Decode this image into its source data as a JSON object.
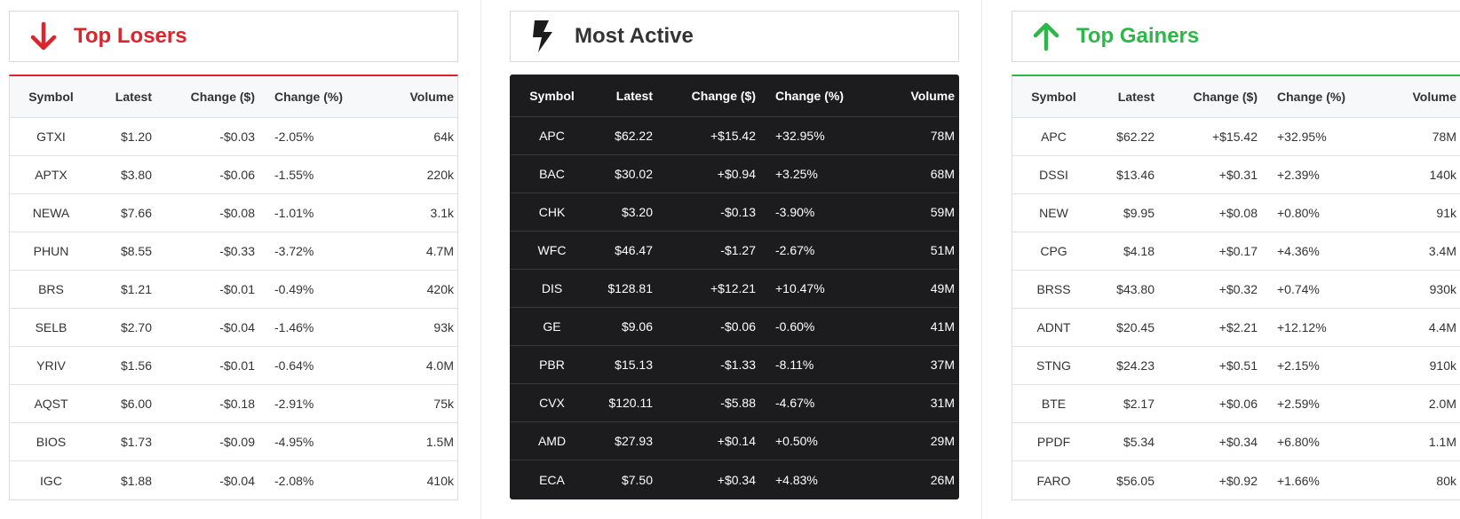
{
  "columns": [
    "Symbol",
    "Latest",
    "Change ($)",
    "Change (%)",
    "Volume"
  ],
  "colors": {
    "loss": "#d9262e",
    "gain": "#2bb74a",
    "dark": "#1c1c1e"
  },
  "panels": {
    "losers": {
      "title": "Top Losers",
      "icon": "arrow-down-icon",
      "rows": [
        [
          "GTXI",
          "$1.20",
          "-$0.03",
          "-2.05%",
          "64k"
        ],
        [
          "APTX",
          "$3.80",
          "-$0.06",
          "-1.55%",
          "220k"
        ],
        [
          "NEWA",
          "$7.66",
          "-$0.08",
          "-1.01%",
          "3.1k"
        ],
        [
          "PHUN",
          "$8.55",
          "-$0.33",
          "-3.72%",
          "4.7M"
        ],
        [
          "BRS",
          "$1.21",
          "-$0.01",
          "-0.49%",
          "420k"
        ],
        [
          "SELB",
          "$2.70",
          "-$0.04",
          "-1.46%",
          "93k"
        ],
        [
          "YRIV",
          "$1.56",
          "-$0.01",
          "-0.64%",
          "4.0M"
        ],
        [
          "AQST",
          "$6.00",
          "-$0.18",
          "-2.91%",
          "75k"
        ],
        [
          "BIOS",
          "$1.73",
          "-$0.09",
          "-4.95%",
          "1.5M"
        ],
        [
          "IGC",
          "$1.88",
          "-$0.04",
          "-2.08%",
          "410k"
        ]
      ]
    },
    "active": {
      "title": "Most Active",
      "icon": "lightning-bolt-icon",
      "rows": [
        [
          "APC",
          "$62.22",
          "+$15.42",
          "+32.95%",
          "78M"
        ],
        [
          "BAC",
          "$30.02",
          "+$0.94",
          "+3.25%",
          "68M"
        ],
        [
          "CHK",
          "$3.20",
          "-$0.13",
          "-3.90%",
          "59M"
        ],
        [
          "WFC",
          "$46.47",
          "-$1.27",
          "-2.67%",
          "51M"
        ],
        [
          "DIS",
          "$128.81",
          "+$12.21",
          "+10.47%",
          "49M"
        ],
        [
          "GE",
          "$9.06",
          "-$0.06",
          "-0.60%",
          "41M"
        ],
        [
          "PBR",
          "$15.13",
          "-$1.33",
          "-8.11%",
          "37M"
        ],
        [
          "CVX",
          "$120.11",
          "-$5.88",
          "-4.67%",
          "31M"
        ],
        [
          "AMD",
          "$27.93",
          "+$0.14",
          "+0.50%",
          "29M"
        ],
        [
          "ECA",
          "$7.50",
          "+$0.34",
          "+4.83%",
          "26M"
        ]
      ]
    },
    "gainers": {
      "title": "Top Gainers",
      "icon": "arrow-up-icon",
      "rows": [
        [
          "APC",
          "$62.22",
          "+$15.42",
          "+32.95%",
          "78M"
        ],
        [
          "DSSI",
          "$13.46",
          "+$0.31",
          "+2.39%",
          "140k"
        ],
        [
          "NEW",
          "$9.95",
          "+$0.08",
          "+0.80%",
          "91k"
        ],
        [
          "CPG",
          "$4.18",
          "+$0.17",
          "+4.36%",
          "3.4M"
        ],
        [
          "BRSS",
          "$43.80",
          "+$0.32",
          "+0.74%",
          "930k"
        ],
        [
          "ADNT",
          "$20.45",
          "+$2.21",
          "+12.12%",
          "4.4M"
        ],
        [
          "STNG",
          "$24.23",
          "+$0.51",
          "+2.15%",
          "910k"
        ],
        [
          "BTE",
          "$2.17",
          "+$0.06",
          "+2.59%",
          "2.0M"
        ],
        [
          "PPDF",
          "$5.34",
          "+$0.34",
          "+6.80%",
          "1.1M"
        ],
        [
          "FARO",
          "$56.05",
          "+$0.92",
          "+1.66%",
          "80k"
        ]
      ]
    }
  }
}
